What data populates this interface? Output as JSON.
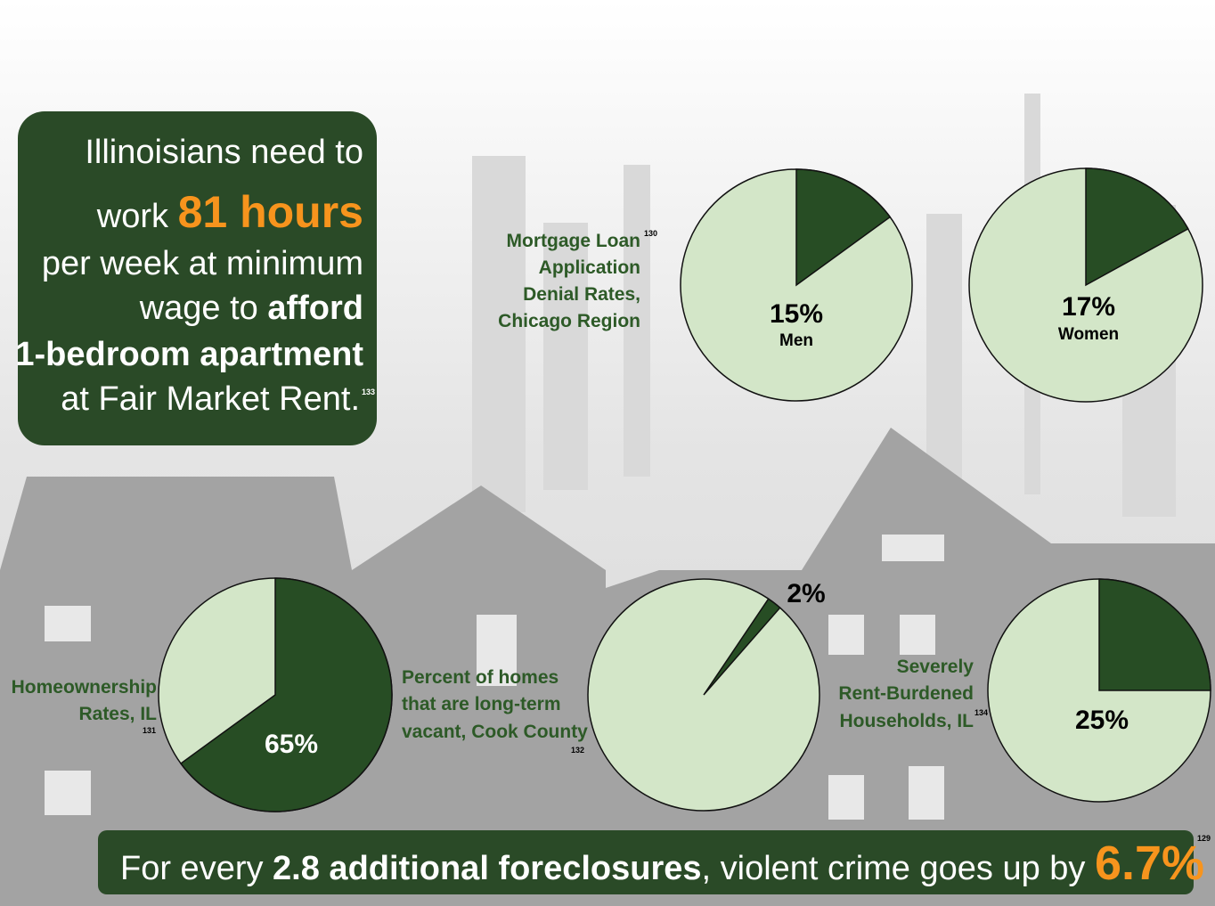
{
  "callout": {
    "line1": "Illinoisians need to",
    "work": "work",
    "hours": "81 hours",
    "line3": "per week at minimum",
    "line4a": "wage  to",
    "line4b": "afford",
    "line5": "1-bedroom apartment",
    "line6": "at Fair Market Rent.",
    "note": "133"
  },
  "mortgage": {
    "title_lines": [
      "Mortgage Loan",
      "Application",
      "Denial Rates,",
      "Chicago Region"
    ],
    "note": "130",
    "pies": [
      {
        "value": 15,
        "value_label": "15%",
        "label": "Men"
      },
      {
        "value": 17,
        "value_label": "17%",
        "label": "Women"
      }
    ]
  },
  "homeownership": {
    "title_lines": [
      "Homeownership",
      "Rates, IL"
    ],
    "note": "131",
    "value": 65,
    "value_label": "65%"
  },
  "vacant": {
    "title_lines": [
      "Percent of homes",
      "that are long-term",
      "vacant, Cook County"
    ],
    "note": "132",
    "value": 2,
    "value_label": "2%"
  },
  "rent": {
    "title_lines": [
      "Severely",
      "Rent-Burdened",
      "Households, IL"
    ],
    "note": "134",
    "value": 25,
    "value_label": "25%"
  },
  "footer": {
    "a": "For every",
    "b": "2.8 additional foreclosures",
    "c": ", violent crime goes up by",
    "d": "6.7%",
    "note": "129"
  }
}
